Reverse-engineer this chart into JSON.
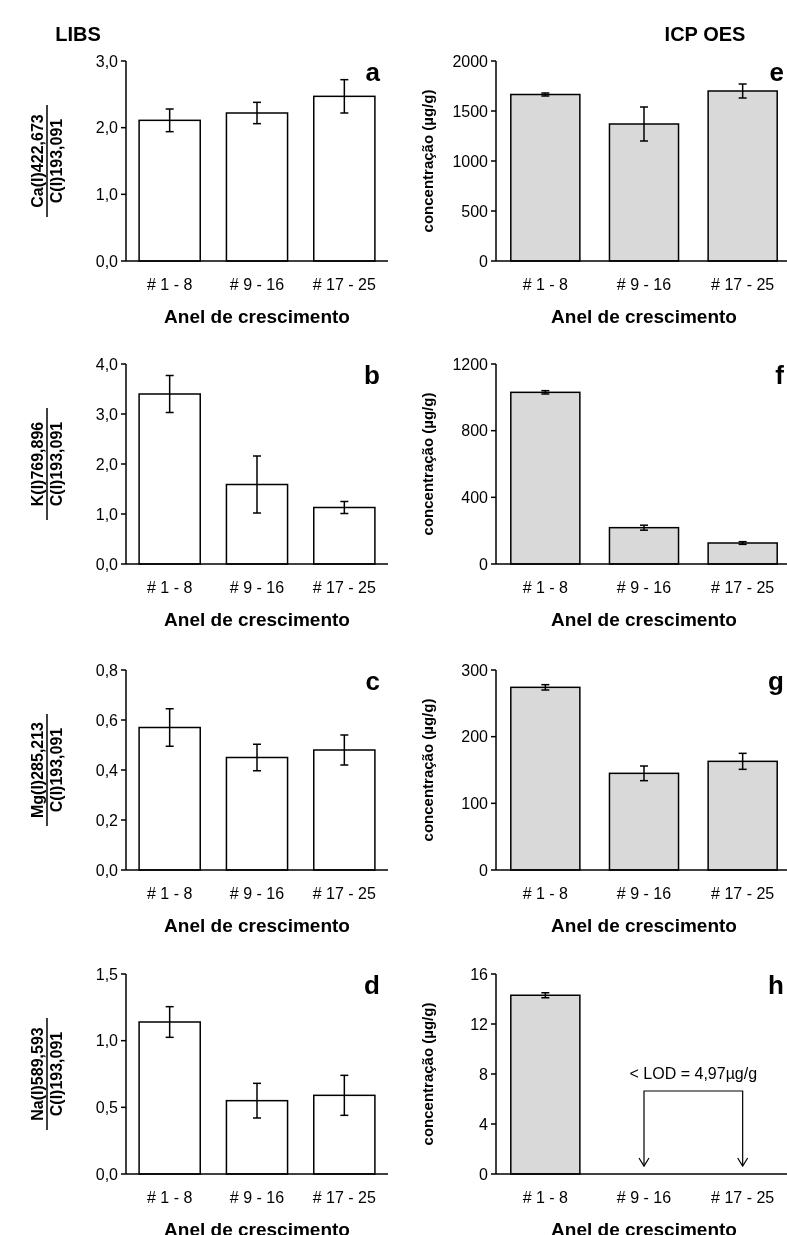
{
  "chart_data": [
    {
      "type": "bar",
      "title": "LIBS",
      "xlabel": "Anel de crescimento",
      "ylabel": "Ca(I)422,673\nC(I)193,091",
      "categories": [
        "# 1 - 8",
        "# 9 - 16",
        "# 17 - 25"
      ],
      "values": [
        2.11,
        2.22,
        2.47
      ],
      "errors": [
        0.17,
        0.16,
        0.25
      ],
      "color": "#ffffff",
      "ylim": [
        0,
        3
      ],
      "yticks": [
        {
          "value": 0,
          "label": "0,0"
        },
        {
          "value": 1,
          "label": "1,0"
        },
        {
          "value": 2,
          "label": "2,0"
        },
        {
          "value": 3,
          "label": "3,0"
        }
      ],
      "annotations": [
        "a"
      ]
    },
    {
      "type": "bar",
      "title": "ICP OES",
      "xlabel": "Anel de crescimento",
      "ylabel": "concentração (µg/g)",
      "categories": [
        "# 1 - 8",
        "# 9 - 16",
        "# 17 - 25"
      ],
      "values": [
        1665,
        1370,
        1700
      ],
      "errors": [
        15,
        170,
        70
      ],
      "color": "#d9d9d9",
      "ylim": [
        0,
        2000
      ],
      "yticks": [
        0,
        500,
        1000,
        1500,
        2000
      ],
      "annotations": [
        "e"
      ]
    },
    {
      "type": "bar",
      "xlabel": "Anel de crescimento",
      "ylabel": "K(I)769,896\nC(I)193,091",
      "categories": [
        "# 1 - 8",
        "# 9 - 16",
        "# 17 - 25"
      ],
      "values": [
        3.4,
        1.59,
        1.13
      ],
      "errors": [
        0.37,
        0.57,
        0.12
      ],
      "color": "#ffffff",
      "ylim": [
        0,
        4
      ],
      "yticks": [
        {
          "value": 0,
          "label": "0,0"
        },
        {
          "value": 1,
          "label": "1,0"
        },
        {
          "value": 2,
          "label": "2,0"
        },
        {
          "value": 3,
          "label": "3,0"
        },
        {
          "value": 4,
          "label": "4,0"
        }
      ],
      "annotations": [
        "b"
      ]
    },
    {
      "type": "bar",
      "xlabel": "Anel de crescimento",
      "ylabel": "concentração (µg/g)",
      "categories": [
        "# 1 - 8",
        "# 9 - 16",
        "# 17 - 25"
      ],
      "values": [
        1030,
        218,
        126
      ],
      "errors": [
        10,
        15,
        8
      ],
      "color": "#d9d9d9",
      "ylim": [
        0,
        1200
      ],
      "yticks": [
        0,
        400,
        800,
        1200
      ],
      "annotations": [
        "f"
      ]
    },
    {
      "type": "bar",
      "xlabel": "Anel de crescimento",
      "ylabel": "Mg(I)285,213\nC(I)193,091",
      "categories": [
        "# 1 - 8",
        "# 9 - 16",
        "# 17 - 25"
      ],
      "values": [
        0.57,
        0.45,
        0.48
      ],
      "errors": [
        0.075,
        0.053,
        0.06
      ],
      "color": "#ffffff",
      "ylim": [
        0,
        0.8
      ],
      "yticks": [
        {
          "value": 0,
          "label": "0,0"
        },
        {
          "value": 0.2,
          "label": "0,2"
        },
        {
          "value": 0.4,
          "label": "0,4"
        },
        {
          "value": 0.6,
          "label": "0,6"
        },
        {
          "value": 0.8,
          "label": "0,8"
        }
      ],
      "annotations": [
        "c"
      ]
    },
    {
      "type": "bar",
      "xlabel": "Anel de crescimento",
      "ylabel": "concentração (µg/g)",
      "categories": [
        "# 1 - 8",
        "# 9 - 16",
        "# 17 - 25"
      ],
      "values": [
        274,
        145,
        163
      ],
      "errors": [
        4,
        11,
        12
      ],
      "color": "#d9d9d9",
      "ylim": [
        0,
        300
      ],
      "yticks": [
        0,
        100,
        200,
        300
      ],
      "annotations": [
        "g"
      ]
    },
    {
      "type": "bar",
      "xlabel": "Anel de crescimento",
      "ylabel": "Na(I)589,593\nC(I)193,091",
      "categories": [
        "# 1 - 8",
        "# 9 - 16",
        "# 17 - 25"
      ],
      "values": [
        1.14,
        0.55,
        0.59
      ],
      "errors": [
        0.115,
        0.13,
        0.15
      ],
      "color": "#ffffff",
      "ylim": [
        0,
        1.5
      ],
      "yticks": [
        {
          "value": 0,
          "label": "0,0"
        },
        {
          "value": 0.5,
          "label": "0,5"
        },
        {
          "value": 1,
          "label": "1,0"
        },
        {
          "value": 1.5,
          "label": "1,5"
        }
      ],
      "annotations": [
        "d"
      ]
    },
    {
      "type": "bar",
      "xlabel": "Anel de crescimento",
      "ylabel": "concentração (µg/g)",
      "categories": [
        "# 1 - 8",
        "# 9 - 16",
        "# 17 - 25"
      ],
      "values": [
        14.3,
        null,
        null
      ],
      "errors": [
        0.2,
        null,
        null
      ],
      "color": "#d9d9d9",
      "ylim": [
        0,
        16
      ],
      "yticks": [
        0,
        4,
        8,
        12,
        16
      ],
      "annotations": [
        "h",
        "< LOD = 4,97µg/g"
      ]
    }
  ]
}
